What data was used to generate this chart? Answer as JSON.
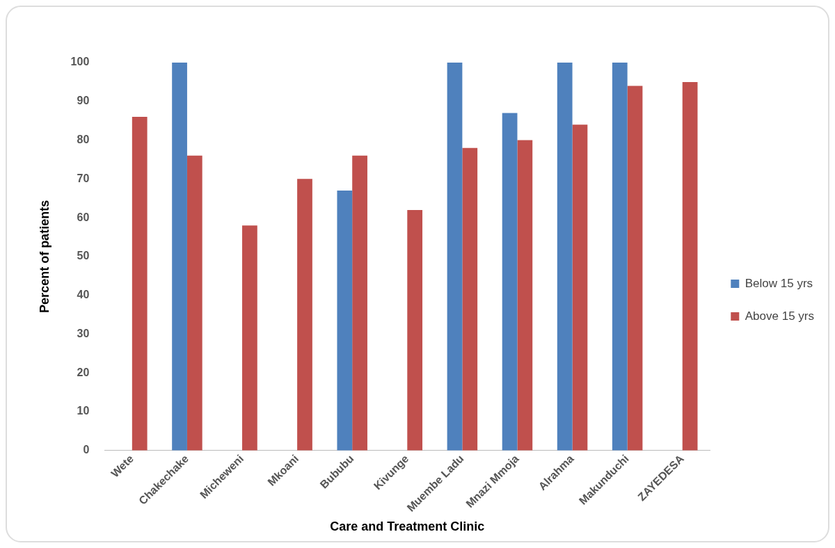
{
  "chart_data": {
    "type": "bar",
    "xlabel": "Care and Treatment Clinic",
    "ylabel": "Percent of patients",
    "categories": [
      "Wete",
      "Chakechake",
      "Micheweni",
      "Mkoani",
      "Bububu",
      "Kivunge",
      "Muembe Ladu",
      "Mnazi Mmoja",
      "Alrahma",
      "Makunduchi",
      "ZAYEDESA"
    ],
    "series": [
      {
        "name": "Below 15 yrs",
        "color": "#4f81bd",
        "values": [
          null,
          100,
          null,
          null,
          67,
          null,
          100,
          87,
          100,
          100,
          null
        ]
      },
      {
        "name": "Above 15 yrs",
        "color": "#c0504d",
        "values": [
          86,
          76,
          58,
          70,
          76,
          62,
          78,
          80,
          84,
          94,
          95
        ]
      }
    ],
    "ylim": [
      0,
      100
    ],
    "yticks": [
      0,
      10,
      20,
      30,
      40,
      50,
      60,
      70,
      80,
      90,
      100
    ],
    "grid": false,
    "legend": "right"
  }
}
